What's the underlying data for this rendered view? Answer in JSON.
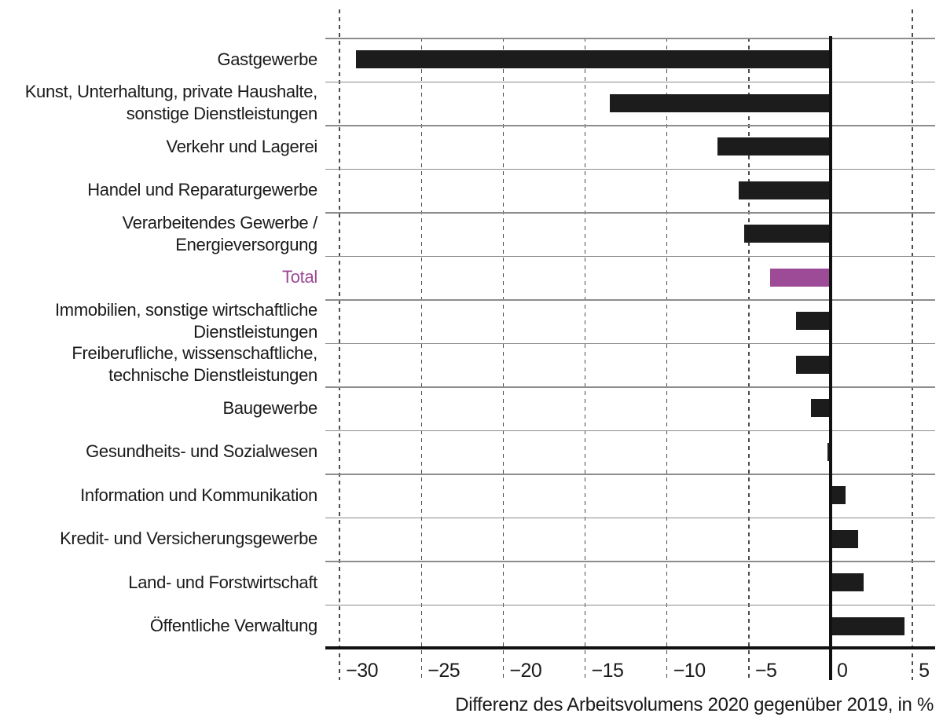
{
  "chart_data": {
    "type": "bar",
    "orientation": "horizontal",
    "title": "",
    "xlabel": "Differenz des Arbeitsvolumens 2020 gegenüber 2019, in %",
    "ylabel": "",
    "xlim": [
      -31,
      6.4
    ],
    "xticks": [
      -30,
      -25,
      -20,
      -15,
      -10,
      -5,
      0,
      5
    ],
    "xtick_labels": [
      "−30",
      "−25",
      "−20",
      "−15",
      "−10",
      "−5",
      "0",
      "5"
    ],
    "grid": "horizontal solid lines between rows, vertical dashed gridlines at ticks",
    "legend_position": "none",
    "categories": [
      "Gastgewerbe",
      "Kunst, Unterhaltung, private Haushalte,\nsonstige Dienstleistungen",
      "Verkehr und Lagerei",
      "Handel und Reparaturgewerbe",
      "Verarbeitendes Gewerbe /\nEnergieversorgung",
      "Total",
      "Immobilien, sonstige wirtschaftliche\nDienstleistungen",
      "Freiberufliche, wissenschaftliche,\ntechnische Dienstleistungen",
      "Baugewerbe",
      "Gesundheits- und Sozialwesen",
      "Information und Kommunikation",
      "Kredit- und Versicherungsgewerbe",
      "Land- und Forstwirtschaft",
      "Öffentliche Verwaltung"
    ],
    "values": [
      -29.0,
      -13.5,
      -6.9,
      -5.6,
      -5.3,
      -3.7,
      -2.1,
      -2.1,
      -1.2,
      -0.2,
      0.9,
      1.7,
      2.0,
      4.5
    ],
    "highlight_index": 5,
    "colors": {
      "bar": "#1c1c1c",
      "highlight_bar": "#9d4b96",
      "highlight_text": "#9d4896",
      "text": "#1a1a1a",
      "grid_line": "#8c8c8c",
      "dash_line": "#4d4d4d",
      "axis_line": "#111111"
    }
  }
}
